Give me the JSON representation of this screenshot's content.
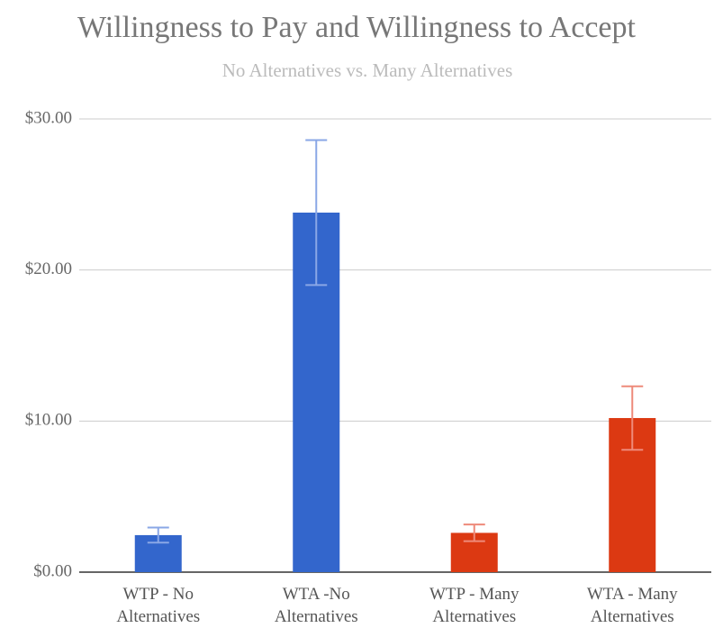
{
  "chart_data": {
    "type": "bar",
    "title": "Willingness to Pay and Willingness to Accept",
    "subtitle": "No Alternatives vs. Many Alternatives",
    "categories": [
      "WTP - No Alternatives",
      "WTA -No Alternatives",
      "WTP - Many Alternatives",
      "WTA - Many Alternatives"
    ],
    "values": [
      2.45,
      23.8,
      2.6,
      10.2
    ],
    "errors": [
      0.5,
      4.8,
      0.55,
      2.1
    ],
    "colors": [
      "#3366cc",
      "#3366cc",
      "#dc3912",
      "#dc3912"
    ],
    "error_colors": [
      "#8aa7e6",
      "#8aa7e6",
      "#ee8a7a",
      "#ee8a7a"
    ],
    "ylim": [
      0,
      30
    ],
    "yticks": [
      {
        "value": 0,
        "label": "$0.00"
      },
      {
        "value": 10,
        "label": "$10.00"
      },
      {
        "value": 20,
        "label": "$20.00"
      },
      {
        "value": 30,
        "label": "$30.00"
      }
    ],
    "grid": true
  }
}
